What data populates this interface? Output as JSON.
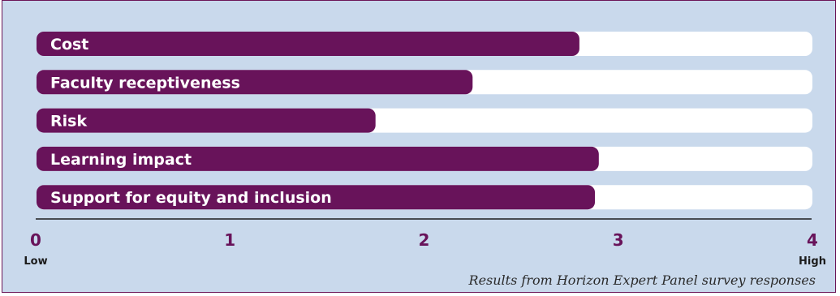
{
  "chart_data": {
    "type": "bar",
    "orientation": "horizontal",
    "categories": [
      "Cost",
      "Faculty receptiveness",
      "Risk",
      "Learning impact",
      "Support for equity and inclusion"
    ],
    "values": [
      2.8,
      2.25,
      1.75,
      2.9,
      2.88
    ],
    "xlim": [
      0,
      4
    ],
    "ticks": [
      "0",
      "1",
      "2",
      "3",
      "4"
    ],
    "low_label": "Low",
    "high_label": "High",
    "caption": "Results from Horizon Expert Panel survey responses",
    "colors": {
      "background": "#c9d9ec",
      "bar": "#68135a",
      "track": "#ffffff",
      "border": "#6b1657",
      "tick_text": "#68135a"
    }
  }
}
